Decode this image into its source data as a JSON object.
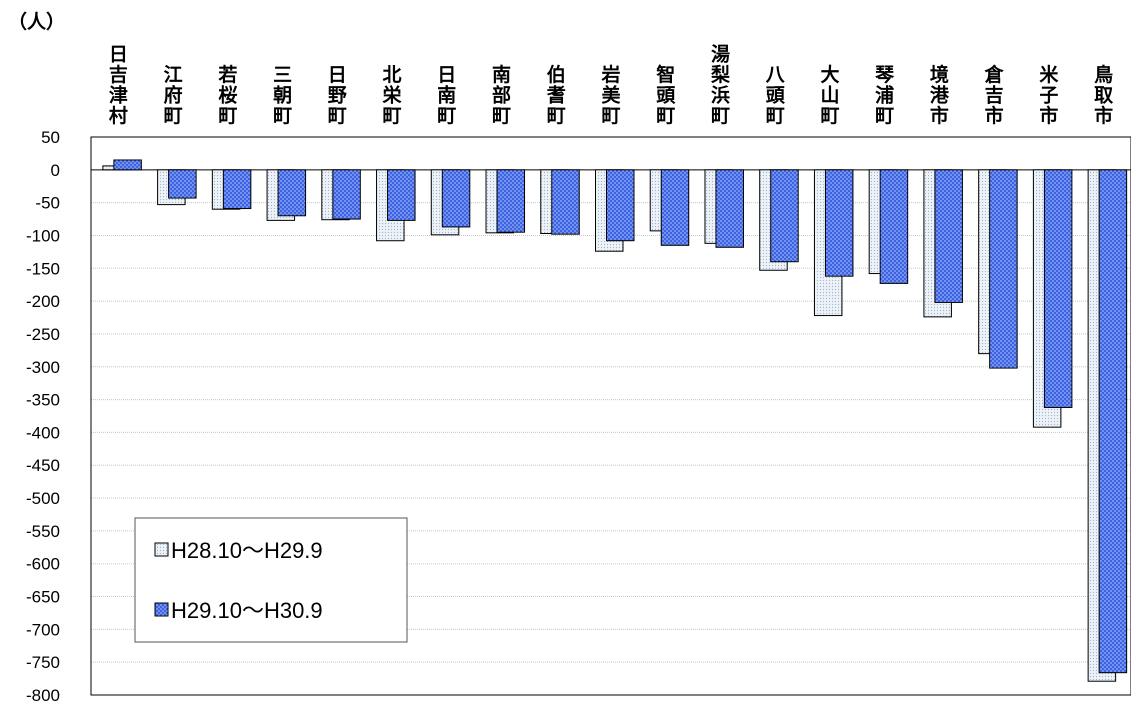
{
  "chart_data": {
    "type": "bar",
    "unit_label": "（人）",
    "categories": [
      "日吉津村",
      "江府町",
      "若桜町",
      "三朝町",
      "日野町",
      "北栄町",
      "日南町",
      "南部町",
      "伯耆町",
      "岩美町",
      "智頭町",
      "湯梨浜町",
      "八頭町",
      "大山町",
      "琴浦町",
      "境港市",
      "倉吉市",
      "米子市",
      "鳥取市"
    ],
    "series": [
      {
        "name": "H28.10～H29.9",
        "color": "#e8eef5",
        "pattern": "light-dots",
        "values": [
          6,
          -53,
          -60,
          -77,
          -76,
          -108,
          -99,
          -96,
          -97,
          -124,
          -93,
          -112,
          -153,
          -222,
          -158,
          -224,
          -280,
          -392,
          -779
        ]
      },
      {
        "name": "H29.10～H30.9",
        "color": "#3c64e6",
        "pattern": "white-dots",
        "values": [
          15,
          -43,
          -59,
          -70,
          -75,
          -77,
          -87,
          -95,
          -98,
          -108,
          -115,
          -118,
          -140,
          -162,
          -173,
          -202,
          -302,
          -362,
          -766
        ]
      }
    ],
    "ylim": [
      -800,
      50
    ],
    "yticks": [
      50,
      0,
      -50,
      -100,
      -150,
      -200,
      -250,
      -300,
      -350,
      -400,
      -450,
      -500,
      -550,
      -600,
      -650,
      -700,
      -750,
      -800
    ],
    "ytick_labels": [
      "50",
      "0",
      "-50",
      "-100",
      "-150",
      "-200",
      "-250",
      "-300",
      "-350",
      "-400",
      "-450",
      "-500",
      "-550",
      "-600",
      "-650",
      "-700",
      "-750",
      "-800"
    ],
    "grid": true,
    "legend": {
      "position": "bottom-left"
    }
  }
}
